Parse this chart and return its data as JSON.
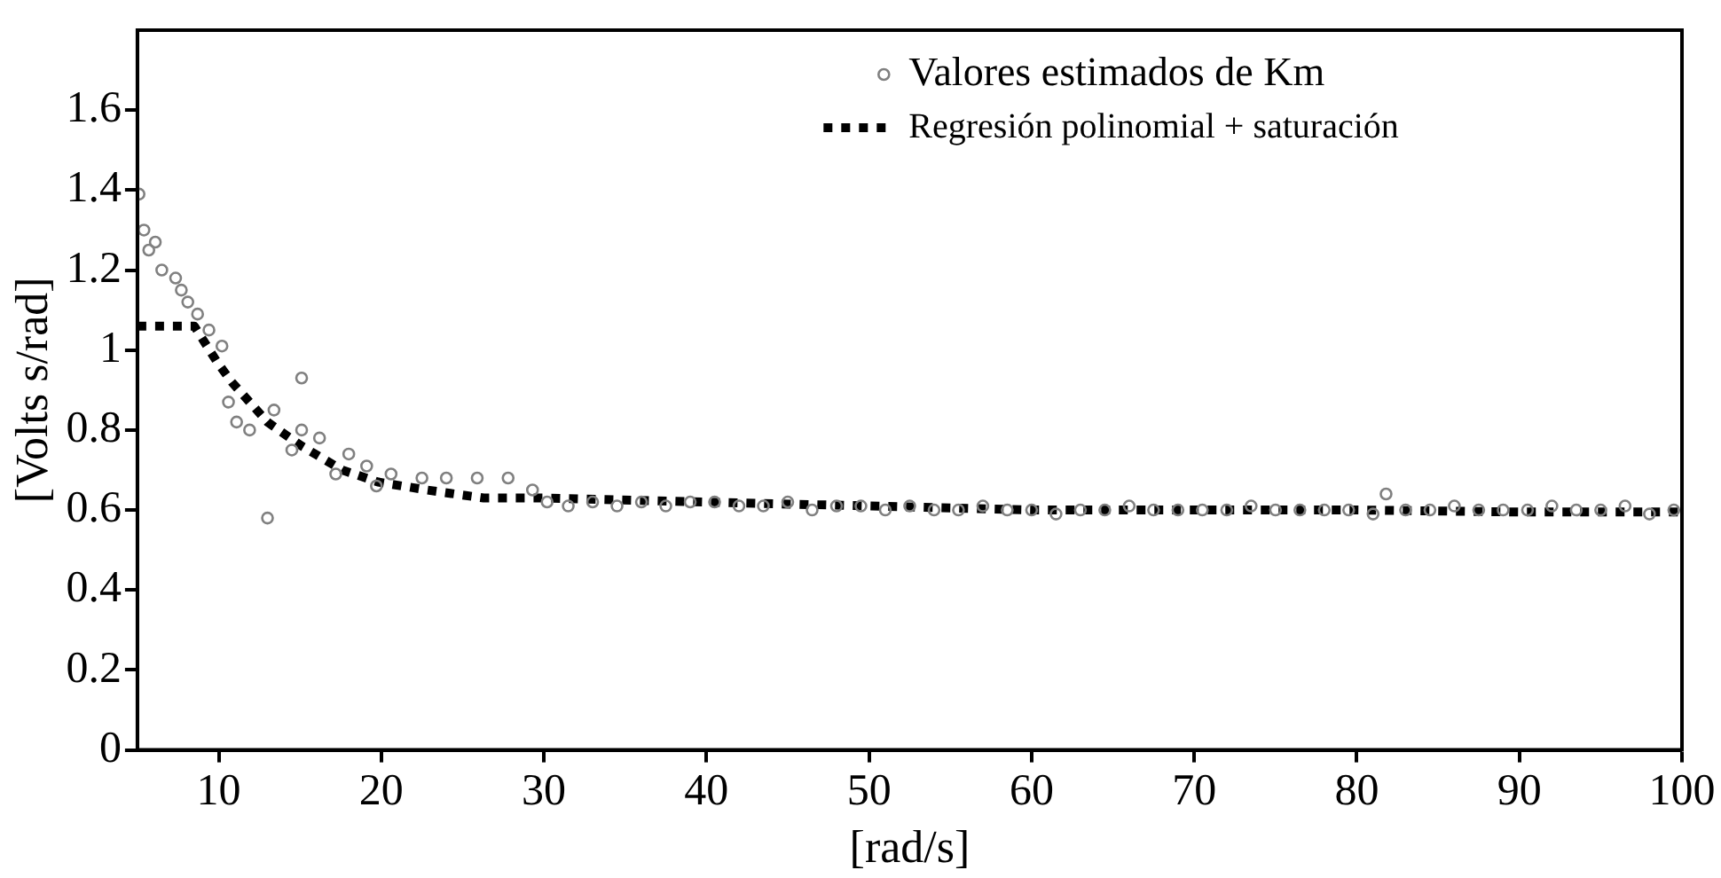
{
  "chart_data": {
    "type": "scatter",
    "xlabel": "[rad/s]",
    "ylabel": "[Volts s/rad]",
    "xlim": [
      5,
      100
    ],
    "ylim": [
      0,
      1.8
    ],
    "xticks": [
      10,
      20,
      30,
      40,
      50,
      60,
      70,
      80,
      90,
      100
    ],
    "yticks": [
      0,
      0.2,
      0.4,
      0.6,
      0.8,
      1,
      1.2,
      1.4,
      1.6
    ],
    "grid": false,
    "legend": "top right",
    "series": [
      {
        "name": "Valores estimados de Km",
        "type": "scatter",
        "marker": "circle",
        "color": "#808080",
        "x": [
          5.1,
          5.4,
          5.7,
          6.1,
          6.5,
          7.35,
          7.7,
          8.1,
          8.7,
          9.4,
          10.2,
          10.6,
          11.1,
          11.9,
          13.0,
          13.4,
          14.5,
          15.1,
          15.1,
          16.2,
          17.2,
          18.0,
          19.1,
          19.7,
          20.6,
          22.5,
          24,
          25.9,
          27.8,
          29.3,
          30.2,
          31.5,
          33,
          34.5,
          36,
          37.5,
          39,
          40.5,
          42,
          43.5,
          45,
          46.5,
          48,
          49.5,
          51,
          52.5,
          54,
          55.5,
          57,
          58.5,
          60,
          61.5,
          63,
          64.5,
          66,
          67.5,
          69,
          70.5,
          72,
          73.5,
          75,
          76.5,
          78,
          79.5,
          81,
          81.8,
          83,
          84.5,
          86,
          87.5,
          89,
          90.5,
          92,
          93.5,
          95,
          96.5,
          98,
          99.5
        ],
        "values": [
          1.39,
          1.3,
          1.25,
          1.27,
          1.2,
          1.18,
          1.15,
          1.12,
          1.09,
          1.05,
          1.01,
          0.87,
          0.82,
          0.8,
          0.58,
          0.85,
          0.75,
          0.93,
          0.8,
          0.78,
          0.69,
          0.74,
          0.71,
          0.66,
          0.69,
          0.68,
          0.68,
          0.68,
          0.68,
          0.65,
          0.62,
          0.61,
          0.62,
          0.61,
          0.62,
          0.61,
          0.62,
          0.62,
          0.61,
          0.61,
          0.62,
          0.6,
          0.61,
          0.61,
          0.6,
          0.61,
          0.6,
          0.6,
          0.61,
          0.6,
          0.6,
          0.59,
          0.6,
          0.6,
          0.61,
          0.6,
          0.6,
          0.6,
          0.6,
          0.61,
          0.6,
          0.6,
          0.6,
          0.6,
          0.59,
          0.64,
          0.6,
          0.6,
          0.61,
          0.6,
          0.6,
          0.6,
          0.61,
          0.6,
          0.6,
          0.61,
          0.59,
          0.6
        ]
      },
      {
        "name": "Regresión polinomial + saturación",
        "type": "line",
        "marker": "none",
        "line_style": "dotted",
        "color": "#000000",
        "x": [
          5,
          8.5,
          9.9,
          10.8,
          13,
          15.1,
          17.6,
          19.8,
          22.8,
          26.3,
          30,
          40,
          50,
          60,
          70,
          80,
          90,
          100
        ],
        "values": [
          1.06,
          1.06,
          0.97,
          0.92,
          0.82,
          0.76,
          0.7,
          0.67,
          0.65,
          0.63,
          0.63,
          0.62,
          0.61,
          0.6,
          0.6,
          0.6,
          0.595,
          0.595
        ]
      }
    ]
  }
}
